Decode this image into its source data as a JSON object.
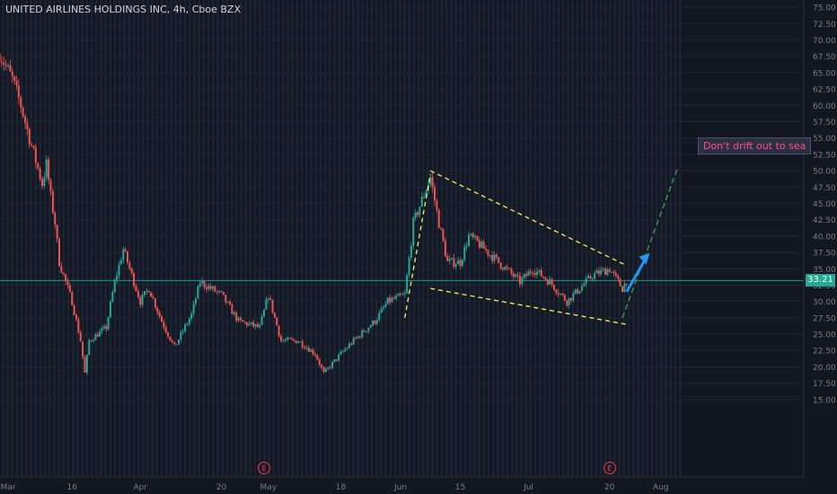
{
  "header": {
    "title": "UNITED AIRLINES HOLDINGS INC, 4h, Cboe BZX"
  },
  "annotation": {
    "text": "Don't drift out to sea"
  },
  "last_price": {
    "label": "33.21",
    "value": 33.21
  },
  "earnings_markers": [
    {
      "label": "E",
      "date": "Apr 30"
    },
    {
      "label": "E",
      "date": "Jul 20"
    }
  ],
  "colors": {
    "background": "#131722",
    "up": "#26a69a",
    "down": "#ef5350",
    "wedge": "#f5f55a",
    "projection": "#3fa34d",
    "arrow": "#2196f3",
    "price_line": "#26a69a"
  },
  "chart_data": {
    "type": "candlestick",
    "title": "UNITED AIRLINES HOLDINGS INC, 4h, Cboe BZX",
    "y_tick_labels": [
      "15.00",
      "17.50",
      "20.00",
      "22.50",
      "25.00",
      "27.50",
      "30.00",
      "32.50",
      "35.00",
      "37.50",
      "40.00",
      "42.50",
      "45.00",
      "47.50",
      "50.00",
      "52.50",
      "55.00",
      "57.50",
      "60.00",
      "62.50",
      "65.00",
      "67.50",
      "70.00",
      "72.50",
      "75.00"
    ],
    "ylim": [
      12.5,
      75
    ],
    "x_tick_labels": [
      "Mar",
      "16",
      "Apr",
      "20",
      "May",
      "18",
      "Jun",
      "15",
      "Jul",
      "20",
      "Aug"
    ],
    "price_anchors": [
      {
        "d": "Feb 28",
        "p": 68
      },
      {
        "d": "Mar 2",
        "p": 64
      },
      {
        "d": "Mar 4",
        "p": 60
      },
      {
        "d": "Mar 6",
        "p": 55
      },
      {
        "d": "Mar 9",
        "p": 48
      },
      {
        "d": "Mar 10",
        "p": 51
      },
      {
        "d": "Mar 11",
        "p": 46
      },
      {
        "d": "Mar 12",
        "p": 42
      },
      {
        "d": "Mar 13",
        "p": 36
      },
      {
        "d": "Mar 16",
        "p": 30
      },
      {
        "d": "Mar 18",
        "p": 24
      },
      {
        "d": "Mar 19",
        "p": 19
      },
      {
        "d": "Mar 20",
        "p": 24
      },
      {
        "d": "Mar 24",
        "p": 26
      },
      {
        "d": "Mar 26",
        "p": 33
      },
      {
        "d": "Mar 28",
        "p": 38
      },
      {
        "d": "Apr 1",
        "p": 30
      },
      {
        "d": "Apr 3",
        "p": 32
      },
      {
        "d": "Apr 6",
        "p": 27
      },
      {
        "d": "Apr 9",
        "p": 23
      },
      {
        "d": "Apr 13",
        "p": 28
      },
      {
        "d": "Apr 15",
        "p": 33
      },
      {
        "d": "Apr 20",
        "p": 31
      },
      {
        "d": "Apr 24",
        "p": 27
      },
      {
        "d": "Apr 29",
        "p": 26
      },
      {
        "d": "May 1",
        "p": 31
      },
      {
        "d": "May 4",
        "p": 24
      },
      {
        "d": "May 8",
        "p": 24
      },
      {
        "d": "May 12",
        "p": 22
      },
      {
        "d": "May 14",
        "p": 19
      },
      {
        "d": "May 18",
        "p": 22
      },
      {
        "d": "May 21",
        "p": 24
      },
      {
        "d": "May 26",
        "p": 27
      },
      {
        "d": "May 29",
        "p": 30
      },
      {
        "d": "Jun 2",
        "p": 31
      },
      {
        "d": "Jun 4",
        "p": 42
      },
      {
        "d": "Jun 8",
        "p": 49
      },
      {
        "d": "Jun 10",
        "p": 42
      },
      {
        "d": "Jun 12",
        "p": 36
      },
      {
        "d": "Jun 15",
        "p": 36
      },
      {
        "d": "Jun 17",
        "p": 40
      },
      {
        "d": "Jun 19",
        "p": 39
      },
      {
        "d": "Jun 24",
        "p": 36
      },
      {
        "d": "Jun 29",
        "p": 33
      },
      {
        "d": "Jul 2",
        "p": 35
      },
      {
        "d": "Jul 6",
        "p": 33
      },
      {
        "d": "Jul 10",
        "p": 30
      },
      {
        "d": "Jul 13",
        "p": 32
      },
      {
        "d": "Jul 16",
        "p": 34
      },
      {
        "d": "Jul 20",
        "p": 35
      },
      {
        "d": "Jul 23",
        "p": 32
      },
      {
        "d": "Jul 24",
        "p": 33.21
      }
    ],
    "trendlines": [
      {
        "name": "wedge-upper",
        "from": {
          "d": "Jun 8",
          "p": 50
        },
        "to": {
          "d": "Jul 24",
          "p": 35.5
        }
      },
      {
        "name": "wedge-lower",
        "from": {
          "d": "Jun 8",
          "p": 32
        },
        "to": {
          "d": "Jul 24",
          "p": 26.5
        }
      },
      {
        "name": "rally-line",
        "from": {
          "d": "Jun 2",
          "p": 27.5
        },
        "to": {
          "d": "Jun 8",
          "p": 49.5
        }
      },
      {
        "name": "projection",
        "from": {
          "d": "Jul 23",
          "p": 27.5
        },
        "to": {
          "d": "Aug 5",
          "p": 50.5
        }
      }
    ],
    "legend": "none",
    "grid": true
  }
}
